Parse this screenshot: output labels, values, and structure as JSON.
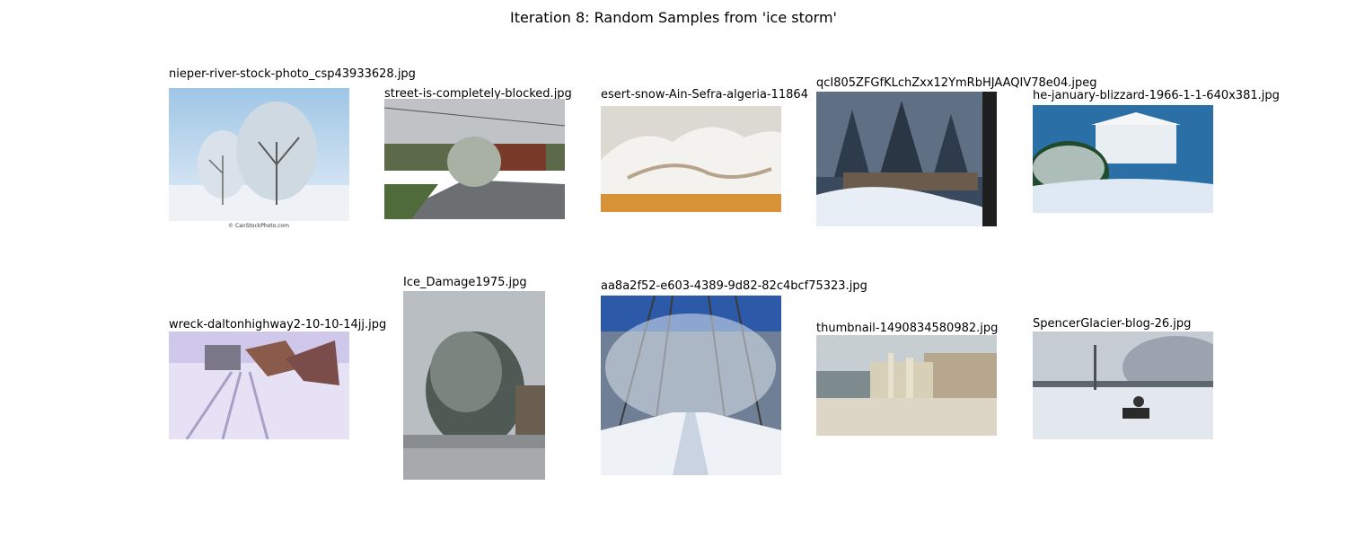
{
  "figure": {
    "title": "Iteration 8: Random Samples from 'ice storm'",
    "samples": [
      {
        "caption": "nieper-river-stock-photo_csp43933628.jpg",
        "watermark": "© CanStockPhoto.com"
      },
      {
        "caption": "street-is-completely-blocked.jpg"
      },
      {
        "caption": "esert-snow-Ain-Sefra-algeria-11864"
      },
      {
        "caption": "qcI805ZFGfKLchZxx12YmRbHJAAQIV78e04.jpeg"
      },
      {
        "caption": "he-january-blizzard-1966-1-1-640x381.jpg"
      },
      {
        "caption": "wreck-daltonhighway2-10-10-14jj.jpg"
      },
      {
        "caption": "Ice_Damage1975.jpg"
      },
      {
        "caption": "aa8a2f52-e603-4389-9d82-82c4bcf75323.jpg"
      },
      {
        "caption": "thumbnail-1490834580982.jpg"
      },
      {
        "caption": "SpencerGlacier-blog-26.jpg"
      }
    ]
  }
}
